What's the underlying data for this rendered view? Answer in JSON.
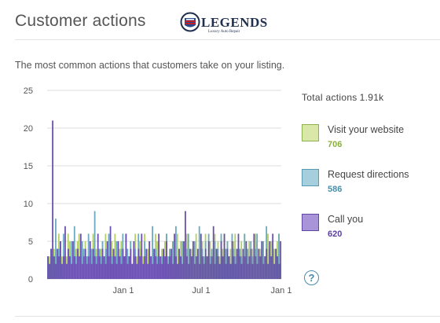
{
  "card": {
    "title": "Customer actions",
    "description": "The most common actions that customers take on your listing."
  },
  "logo": {
    "text": "LEGENDS",
    "subtext": "Luxury Auto Repair"
  },
  "totals": {
    "label": "Total actions",
    "value": "1.91k"
  },
  "legend": [
    {
      "label": "Visit your website",
      "value": "706",
      "color": "#b5cf68",
      "swatch_fill": "#d9e8a8",
      "swatch_border": "#8fb34a",
      "value_color": "#8ab03c"
    },
    {
      "label": "Request directions",
      "value": "586",
      "color": "#6aa9c0",
      "swatch_fill": "#a6cfdd",
      "swatch_border": "#5a9ab3",
      "value_color": "#4a8fa8"
    },
    {
      "label": "Call you",
      "value": "620",
      "color": "#6a4fb0",
      "swatch_fill": "#a894d8",
      "swatch_border": "#5f47a3",
      "value_color": "#5b3fa3"
    }
  ],
  "help_icon": "question-circle-icon",
  "chart_data": {
    "type": "bar",
    "stacked": false,
    "title": "",
    "xlabel": "",
    "ylabel": "",
    "ylim": [
      0,
      25
    ],
    "yticks": [
      0,
      5,
      10,
      15,
      20,
      25
    ],
    "xticks": [
      "Jan 1",
      "Jul 1",
      "Jan 1"
    ],
    "grid": true,
    "x_count": 150,
    "note_daily_values_approximate": true,
    "series": [
      {
        "name": "Visit your website",
        "color": "#b5cf68",
        "values": [
          2,
          3,
          2,
          1,
          4,
          3,
          2,
          6,
          5,
          3,
          4,
          2,
          3,
          6,
          5,
          4,
          2,
          3,
          4,
          5,
          6,
          3,
          2,
          4,
          5,
          3,
          4,
          2,
          3,
          6,
          5,
          4,
          3,
          2,
          4,
          5,
          3,
          6,
          4,
          2,
          3,
          5,
          4,
          6,
          3,
          2,
          4,
          5,
          3,
          2,
          6,
          4,
          3,
          5,
          2,
          4,
          6,
          3,
          2,
          5,
          4,
          3,
          6,
          2,
          4,
          5,
          3,
          2,
          4,
          6,
          5,
          3,
          2,
          4,
          3,
          5,
          6,
          2,
          4,
          3,
          5,
          2,
          4,
          6,
          3,
          5,
          2,
          4,
          3,
          6,
          5,
          2,
          4,
          3,
          5,
          6,
          2,
          3,
          4,
          5,
          2,
          6,
          3,
          4,
          5,
          2,
          3,
          6,
          4,
          5,
          3,
          2,
          4,
          6,
          3,
          5,
          2,
          4,
          3,
          5,
          6,
          2,
          4,
          3,
          5,
          2,
          6,
          4,
          3,
          5,
          2,
          4,
          3,
          6,
          5,
          2,
          4,
          3,
          5,
          2,
          4,
          6,
          3,
          5,
          2,
          4,
          3,
          5,
          6,
          2
        ]
      },
      {
        "name": "Request directions",
        "color": "#6aa9c0",
        "values": [
          3,
          2,
          4,
          3,
          2,
          8,
          3,
          4,
          5,
          2,
          6,
          3,
          2,
          4,
          3,
          5,
          2,
          7,
          3,
          4,
          2,
          3,
          5,
          4,
          2,
          3,
          6,
          2,
          4,
          3,
          9,
          3,
          2,
          4,
          3,
          5,
          2,
          4,
          3,
          6,
          2,
          3,
          4,
          2,
          5,
          3,
          2,
          4,
          6,
          3,
          2,
          4,
          3,
          5,
          2,
          3,
          4,
          2,
          6,
          3,
          4,
          2,
          5,
          3,
          2,
          4,
          3,
          7,
          2,
          4,
          3,
          5,
          2,
          3,
          4,
          2,
          6,
          3,
          4,
          2,
          5,
          3,
          7,
          2,
          4,
          3,
          5,
          2,
          3,
          4,
          6,
          2,
          3,
          4,
          5,
          2,
          3,
          7,
          2,
          4,
          3,
          5,
          2,
          6,
          3,
          4,
          2,
          5,
          3,
          4,
          2,
          6,
          3,
          2,
          4,
          5,
          3,
          2,
          6,
          4,
          3,
          2,
          5,
          4,
          3,
          2,
          6,
          3,
          4,
          2,
          5,
          3,
          2,
          4,
          6,
          3,
          2,
          4,
          5,
          3,
          7,
          2,
          4,
          3,
          5,
          2,
          4,
          3,
          6,
          2
        ]
      },
      {
        "name": "Call you",
        "color": "#6a4fb0",
        "values": [
          3,
          2,
          4,
          21,
          3,
          2,
          4,
          3,
          5,
          2,
          3,
          7,
          2,
          4,
          3,
          2,
          5,
          3,
          2,
          4,
          3,
          6,
          2,
          3,
          4,
          2,
          3,
          5,
          2,
          4,
          3,
          2,
          6,
          3,
          2,
          4,
          3,
          2,
          5,
          3,
          7,
          2,
          4,
          3,
          2,
          5,
          3,
          2,
          4,
          3,
          6,
          2,
          3,
          4,
          2,
          5,
          3,
          2,
          4,
          3,
          6,
          2,
          3,
          4,
          2,
          5,
          3,
          2,
          4,
          3,
          2,
          6,
          3,
          2,
          4,
          3,
          5,
          2,
          3,
          4,
          2,
          6,
          3,
          2,
          4,
          3,
          2,
          5,
          9,
          3,
          2,
          4,
          3,
          5,
          2,
          3,
          4,
          2,
          6,
          3,
          2,
          4,
          3,
          5,
          2,
          3,
          7,
          2,
          4,
          3,
          2,
          5,
          3,
          6,
          2,
          4,
          3,
          2,
          5,
          3,
          2,
          4,
          6,
          3,
          2,
          4,
          3,
          5,
          2,
          3,
          4,
          2,
          6,
          3,
          2,
          4,
          3,
          5,
          2,
          3,
          4,
          2,
          5,
          3,
          6,
          2,
          4,
          3,
          2,
          5
        ]
      }
    ]
  }
}
